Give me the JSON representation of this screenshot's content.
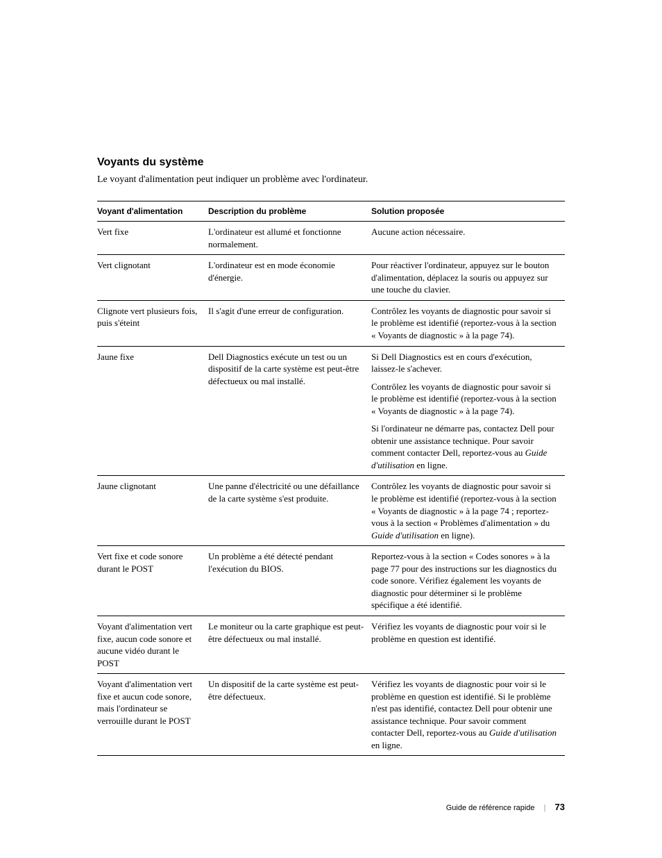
{
  "heading": "Voyants du système",
  "intro": "Le voyant d'alimentation peut indiquer un problème avec l'ordinateur.",
  "columns": {
    "c1": "Voyant d'alimentation",
    "c2": "Description du problème",
    "c3": "Solution proposée"
  },
  "rows": {
    "r0": {
      "c1": "Vert fixe",
      "c2": "L'ordinateur est allumé et fonctionne normalement.",
      "c3": "Aucune action nécessaire."
    },
    "r1": {
      "c1": "Vert clignotant",
      "c2": "L'ordinateur est en mode économie d'énergie.",
      "c3": "Pour réactiver l'ordinateur, appuyez sur le bouton d'alimentation, déplacez la souris ou appuyez sur une touche du clavier."
    },
    "r2": {
      "c1": "Clignote vert plusieurs fois, puis s'éteint",
      "c2": "Il s'agit d'une erreur de configuration.",
      "c3": "Contrôlez les voyants de diagnostic pour savoir si le problème est identifié (reportez-vous à la section « Voyants de diagnostic » à la page 74)."
    },
    "r3": {
      "c1": "Jaune fixe",
      "c2": "Dell Diagnostics exécute un test ou un dispositif de la carte système est peut-être défectueux ou mal installé.",
      "c3a": "Si Dell Diagnostics est en cours d'exécution, laissez-le s'achever.",
      "c3b": "Contrôlez les voyants de diagnostic pour savoir si le problème est identifié (reportez-vous à la section « Voyants de diagnostic » à la page 74).",
      "c3c_pre": "Si l'ordinateur ne démarre pas, contactez Dell pour obtenir une assistance technique. Pour savoir comment contacter Dell, reportez-vous au ",
      "c3c_it": "Guide d'utilisation",
      "c3c_post": " en ligne."
    },
    "r4": {
      "c1": "Jaune clignotant",
      "c2": "Une panne d'électricité ou une défaillance de la carte système s'est produite.",
      "c3_pre": "Contrôlez les voyants de diagnostic pour savoir si le problème est identifié (reportez-vous à la section « Voyants de diagnostic » à la page 74 ; reportez-vous à la section « Problèmes d'alimentation » du ",
      "c3_it": "Guide d'utilisation",
      "c3_post": " en ligne)."
    },
    "r5": {
      "c1": "Vert fixe et code sonore durant le POST",
      "c2": "Un problème a été détecté pendant l'exécution du BIOS.",
      "c3": "Reportez-vous à la section « Codes sonores » à la page 77 pour des instructions sur les diagnostics du code sonore. Vérifiez également les voyants de diagnostic pour déterminer si le problème spécifique a été identifié."
    },
    "r6": {
      "c1": "Voyant d'alimentation vert fixe, aucun code sonore et aucune vidéo durant le POST",
      "c2": "Le moniteur ou la carte graphique est peut-être défectueux ou mal installé.",
      "c3": "Vérifiez les voyants de diagnostic pour voir si le problème en question est identifié."
    },
    "r7": {
      "c1": "Voyant d'alimentation vert fixe et aucun code sonore, mais l'ordinateur se verrouille durant le POST",
      "c2": "Un dispositif de la carte système est peut-être défectueux.",
      "c3_pre": "Vérifiez les voyants de diagnostic pour voir si le problème en question est identifié. Si le problème n'est pas identifié, contactez Dell pour obtenir une assistance technique. Pour savoir comment contacter Dell, reportez-vous au ",
      "c3_it": "Guide d'utilisation",
      "c3_post": " en ligne."
    }
  },
  "footer": {
    "title": "Guide de référence rapide",
    "page": "73"
  }
}
